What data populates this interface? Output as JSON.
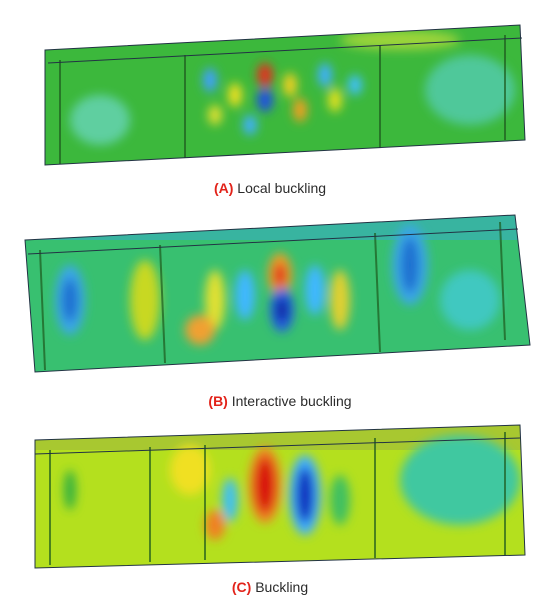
{
  "panels": [
    {
      "label": "(A)",
      "caption": "Local buckling"
    },
    {
      "label": "(B)",
      "caption": "Interactive buckling"
    },
    {
      "label": "(C)",
      "caption": "Buckling"
    }
  ]
}
